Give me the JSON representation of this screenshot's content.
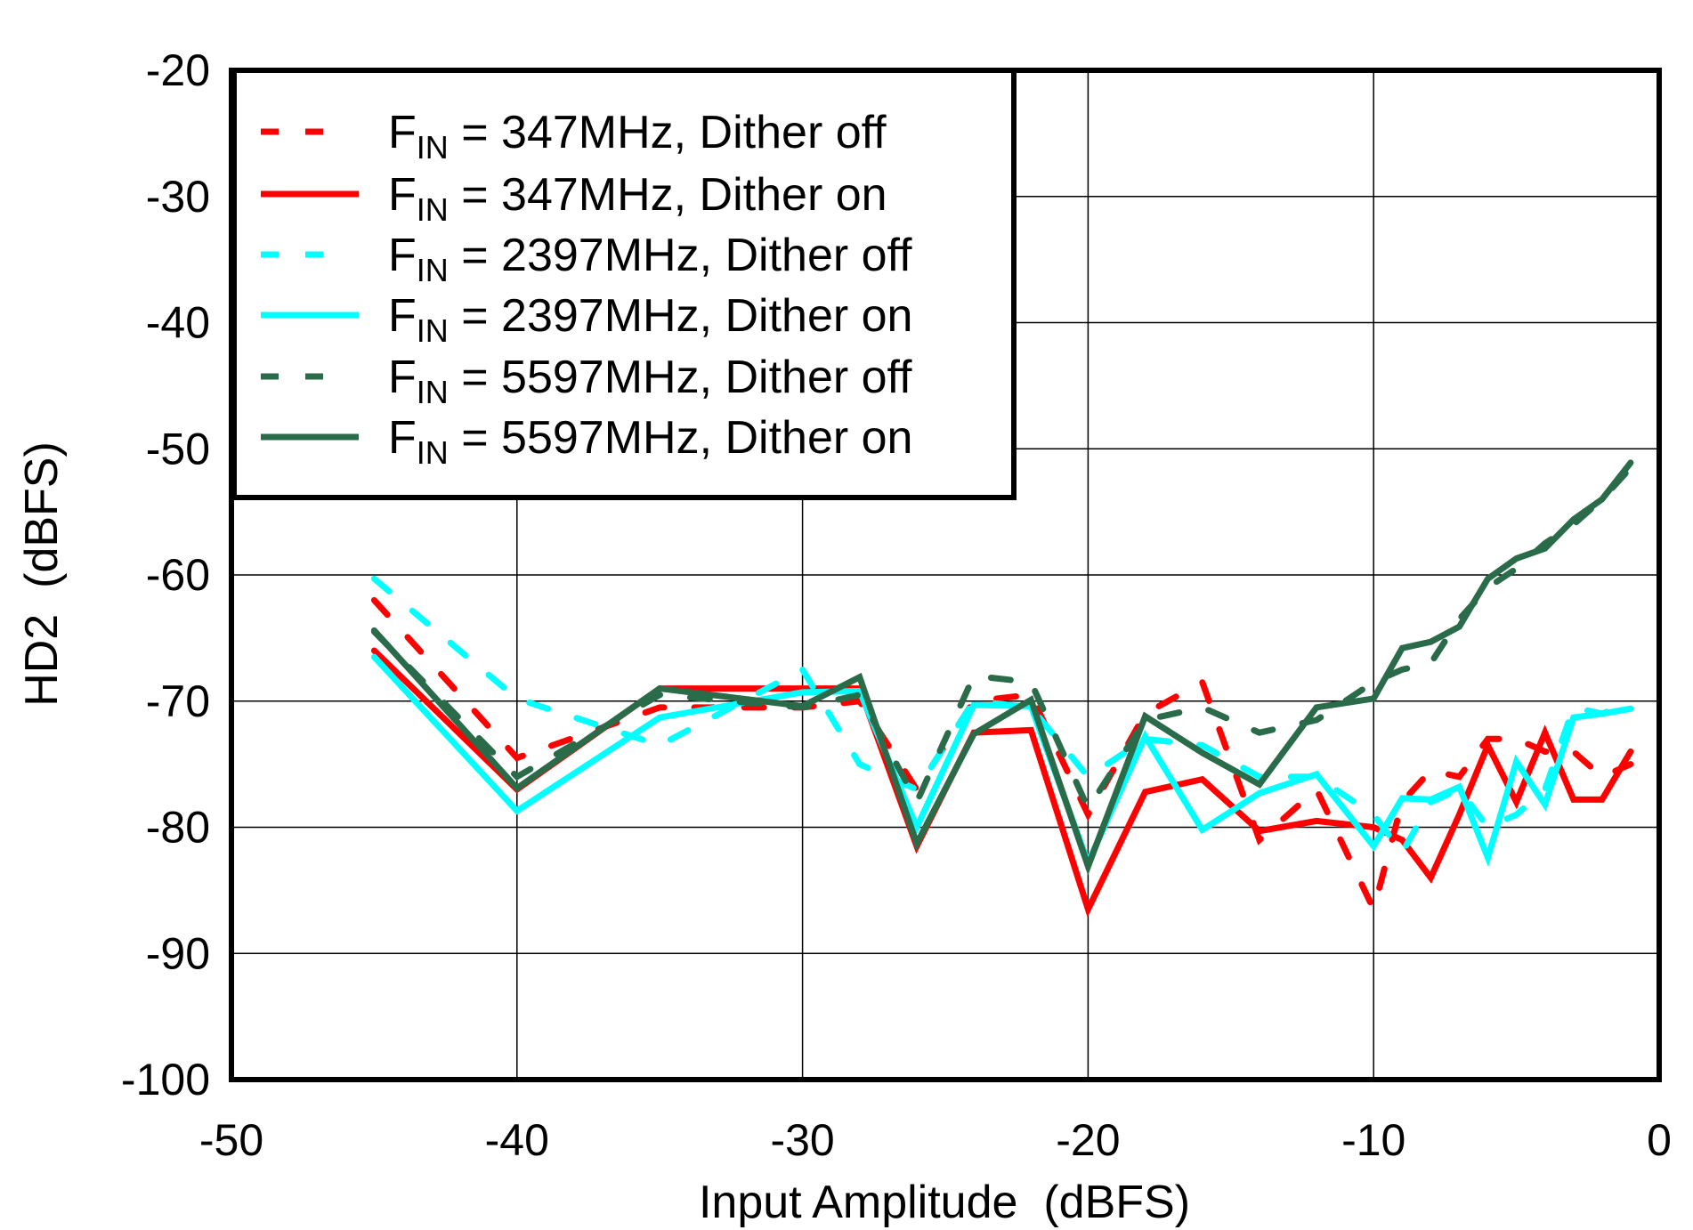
{
  "chart_data": {
    "type": "line",
    "title": "",
    "xlabel": "Input Amplitude  (dBFS)",
    "ylabel": "HD2  (dBFS)",
    "xlim": [
      -50,
      0
    ],
    "ylim": [
      -100,
      -20
    ],
    "xticks": [
      -50,
      -40,
      -30,
      -20,
      -10,
      0
    ],
    "yticks": [
      -20,
      -30,
      -40,
      -50,
      -60,
      -70,
      -80,
      -90,
      -100
    ],
    "grid": true,
    "legend_placement": "top-left",
    "x": [
      -45,
      -40,
      -35,
      -30,
      -28,
      -26,
      -24,
      -22,
      -20,
      -18,
      -16,
      -14,
      -12,
      -10,
      -9,
      -8,
      -7,
      -6,
      -5,
      -4,
      -3,
      -2,
      -1
    ],
    "series": [
      {
        "name": "FIN = 347MHz,  Dither off",
        "color": "#ff0000",
        "style": "dashed",
        "values": [
          -62,
          -74.5,
          -70.5,
          -70.5,
          -70,
          -77,
          -70,
          -69.5,
          -79,
          -71,
          -68.5,
          -81,
          -77,
          -86.5,
          -78,
          -75.5,
          -76,
          -73,
          -73,
          -74,
          -74,
          -76,
          -75
        ]
      },
      {
        "name": "FIN = 347MHz,  Dither on",
        "color": "#ff0000",
        "style": "solid",
        "values": [
          -66,
          -77,
          -69,
          -69,
          -69,
          -81.5,
          -72.5,
          -72.3,
          -86.5,
          -77.2,
          -76.2,
          -80.3,
          -79.5,
          -80,
          -81,
          -84,
          -79,
          -73.5,
          -78,
          -72.5,
          -77.8,
          -77.8,
          -74
        ]
      },
      {
        "name": "FIN = 2397MHz,  Dither off",
        "color": "#00ffff",
        "style": "dashed",
        "values": [
          -60.3,
          -69.8,
          -73.5,
          -67.5,
          -75,
          -77,
          -70,
          -70.5,
          -76,
          -73,
          -73.5,
          -76,
          -76,
          -79,
          -82,
          -78,
          -77,
          -80,
          -79,
          -77,
          -70.5,
          -71,
          -70
        ]
      },
      {
        "name": "FIN = 2397MHz,  Dither on",
        "color": "#00ffff",
        "style": "solid",
        "values": [
          -66.5,
          -78.7,
          -71.3,
          -69.3,
          -69.2,
          -80,
          -70.3,
          -70.4,
          -82.8,
          -72.8,
          -80.2,
          -77.3,
          -75.8,
          -81.5,
          -77.7,
          -77.8,
          -76.8,
          -82.4,
          -74.8,
          -78.2,
          -71.3,
          -71,
          -70.6
        ]
      },
      {
        "name": "FIN = 5597MHz,  Dither off",
        "color": "#2a6b4a",
        "style": "dashed",
        "values": [
          -64.5,
          -76,
          -69.5,
          -70.5,
          -69.5,
          -78,
          -68,
          -68.5,
          -78.5,
          -71.5,
          -70.5,
          -72.5,
          -71.5,
          -68.5,
          -67.5,
          -67,
          -63.5,
          -61,
          -59.5,
          -57.5,
          -56,
          -54,
          -51.5
        ]
      },
      {
        "name": "FIN = 5597MHz,  Dither on",
        "color": "#2a6b4a",
        "style": "solid",
        "values": [
          -64.4,
          -76.9,
          -69,
          -70.4,
          -68.1,
          -81.3,
          -72.6,
          -69.9,
          -83.1,
          -71.2,
          -74.1,
          -76.6,
          -70.5,
          -69.8,
          -65.8,
          -65.3,
          -64.1,
          -60.3,
          -58.7,
          -57.9,
          -55.6,
          -54,
          -51.1
        ]
      }
    ]
  }
}
